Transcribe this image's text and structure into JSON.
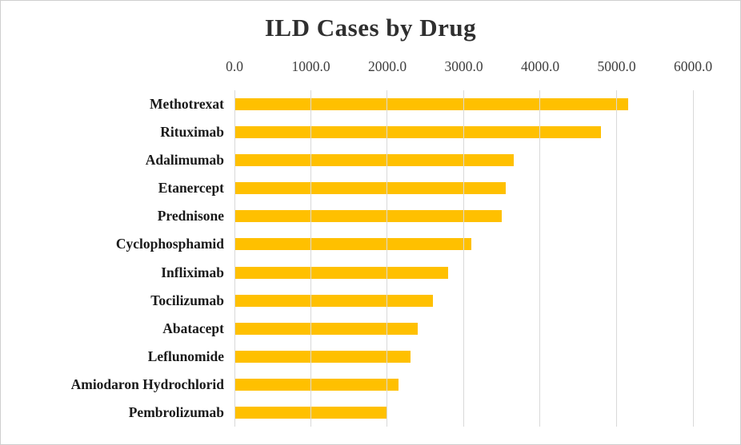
{
  "chart_data": {
    "type": "bar",
    "orientation": "horizontal",
    "title": "ILD Cases by Drug",
    "categories": [
      "Methotrexat",
      "Rituximab",
      "Adalimumab",
      "Etanercept",
      "Prednisone",
      "Cyclophosphamid",
      "Infliximab",
      "Tocilizumab",
      "Abatacept",
      "Leflunomide",
      "Amiodaron Hydrochlorid",
      "Pembrolizumab"
    ],
    "values": [
      5150,
      4800,
      3650,
      3550,
      3500,
      3100,
      2800,
      2600,
      2400,
      2300,
      2150,
      2000
    ],
    "xlabel": "",
    "ylabel": "",
    "xlim": [
      0,
      6000
    ],
    "x_ticks": [
      0,
      1000,
      2000,
      3000,
      4000,
      5000,
      6000
    ],
    "x_tick_labels": [
      "0.0",
      "1000.0",
      "2000.0",
      "3000.0",
      "4000.0",
      "5000.0",
      "6000.0"
    ],
    "legend": "none",
    "grid": "vertical",
    "bar_color": "#FFC000",
    "gridline_color": "#D9D9D9"
  }
}
